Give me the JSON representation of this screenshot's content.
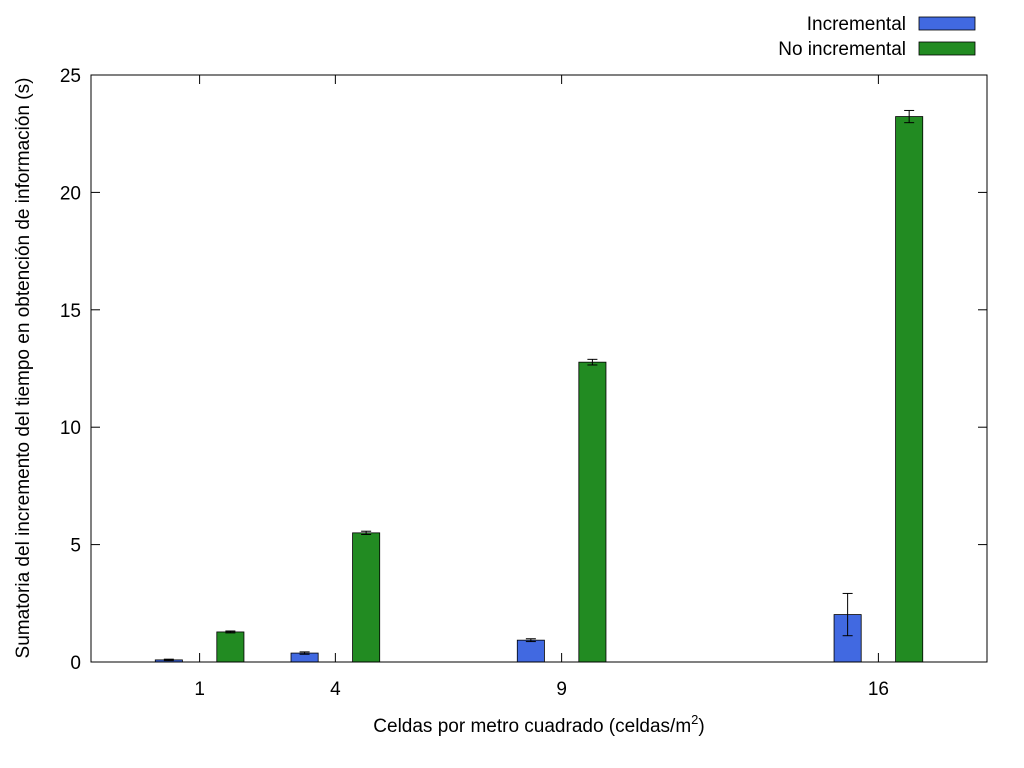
{
  "chart_data": {
    "type": "bar",
    "title": "",
    "xlabel_main": "Celdas por metro cuadrado (celdas/m",
    "xlabel_sup": "2",
    "xlabel_end": ")",
    "ylabel": "Sumatoria del incremento del tiempo en obtención de información (s)",
    "x": [
      1,
      4,
      9,
      16
    ],
    "categories": [
      "1",
      "4",
      "9",
      "16"
    ],
    "xlim": [
      -1.4,
      18.4
    ],
    "ylim": [
      0,
      25
    ],
    "yticks": [
      0,
      5,
      10,
      15,
      20,
      25
    ],
    "grid": false,
    "legend_position": "top-right",
    "series": [
      {
        "name": "Incremental",
        "color": "#4169e1",
        "values": [
          0.09,
          0.38,
          0.93,
          2.02
        ],
        "errors": [
          0.03,
          0.05,
          0.06,
          0.9
        ]
      },
      {
        "name": "No incremental",
        "color": "#228b22",
        "values": [
          1.28,
          5.5,
          12.77,
          23.23
        ],
        "errors": [
          0.04,
          0.07,
          0.12,
          0.26
        ]
      }
    ]
  }
}
